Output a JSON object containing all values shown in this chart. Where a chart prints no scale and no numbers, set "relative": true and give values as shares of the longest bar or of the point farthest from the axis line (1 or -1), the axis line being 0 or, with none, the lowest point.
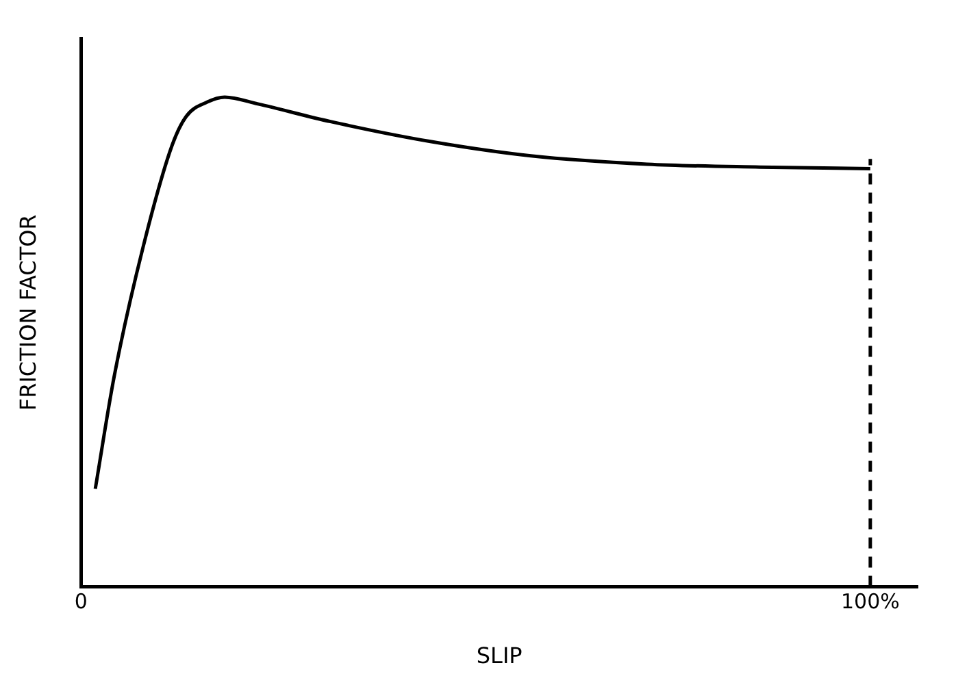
{
  "chart_data": {
    "type": "line",
    "xlabel": "SLIP",
    "ylabel": "FRICTION FACTOR",
    "relative": true,
    "xlim": [
      0,
      106
    ],
    "xticks": [
      0,
      {
        "value": 100,
        "label": "100%"
      }
    ],
    "grid": false,
    "legend": false,
    "marker": "none",
    "line_style": "solid",
    "series": [
      {
        "color": "#000000",
        "x": [
          1.8,
          4.2,
          7.8,
          11.5,
          13.3,
          16,
          18.2,
          22.4,
          31.6,
          44,
          57,
          71.7,
          86,
          100
        ],
        "values": [
          0.2,
          0.43,
          0.69,
          0.9,
          0.96,
          0.99,
          1.0,
          0.986,
          0.95,
          0.91,
          0.88,
          0.863,
          0.857,
          0.854
        ]
      }
    ],
    "ref_lines": [
      {
        "axis": "x",
        "value": 100,
        "color": "#000000",
        "line_style": "dashed"
      }
    ]
  }
}
